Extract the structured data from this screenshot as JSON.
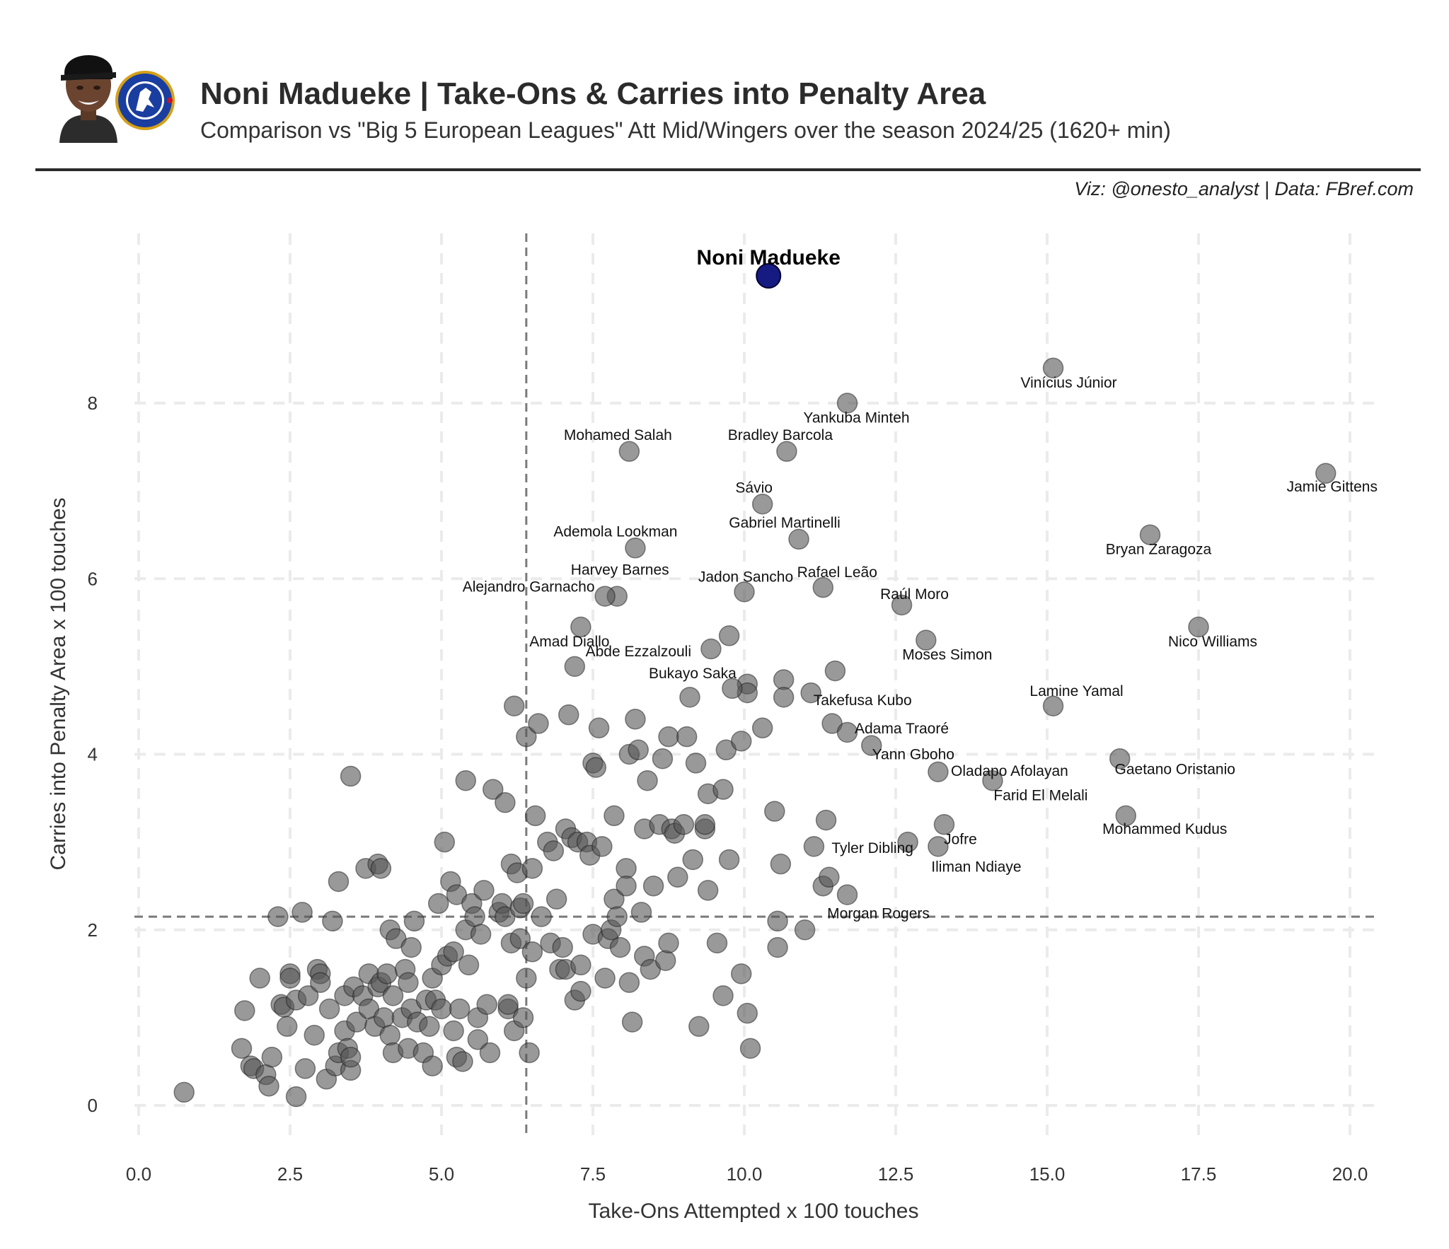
{
  "header": {
    "title": "Noni Madueke | Take-Ons & Carries into Penalty Area",
    "subtitle": "Comparison vs \"Big 5 European Leagues\" Att Mid/Wingers over the season 2024/25 (1620+ min)",
    "credit": "Viz: @onesto_analyst | Data: FBref.com"
  },
  "colors": {
    "highlight": "#0a0f7a",
    "others": "#555555",
    "median_line": "#7a7a7a",
    "grid": "#ebebeb",
    "crest_blue": "#1a3da0"
  },
  "icons": {
    "player_photo": "player-portrait-icon",
    "club_crest": "chelsea-crest-icon"
  },
  "chart_data": {
    "type": "scatter",
    "xlabel": "Take-Ons Attempted x 100 touches",
    "ylabel": "Carries into Penalty Area x 100 touches",
    "xlim": [
      -0.3,
      20.5
    ],
    "ylim": [
      -0.4,
      9.9
    ],
    "xticks": [
      0.0,
      2.5,
      5.0,
      7.5,
      10.0,
      12.5,
      15.0,
      17.5,
      20.0
    ],
    "xtick_labels": [
      "0.0",
      "2.5",
      "5.0",
      "7.5",
      "10.0",
      "12.5",
      "15.0",
      "17.5",
      "20.0"
    ],
    "yticks": [
      0,
      2,
      4,
      6,
      8
    ],
    "ytick_labels": [
      "0",
      "2",
      "4",
      "6",
      "8"
    ],
    "grid": true,
    "median_x": 6.4,
    "median_y": 2.15,
    "highlight": {
      "name": "Noni Madueke",
      "x": 10.4,
      "y": 9.45
    },
    "labeled_points": [
      {
        "name": "Vinícius Júnior",
        "x": 15.1,
        "y": 8.4
      },
      {
        "name": "Yankuba Minteh",
        "x": 11.7,
        "y": 8.0
      },
      {
        "name": "Mohamed Salah",
        "x": 8.1,
        "y": 7.45
      },
      {
        "name": "Bradley Barcola",
        "x": 10.7,
        "y": 7.45
      },
      {
        "name": "Jamie Gittens",
        "x": 19.6,
        "y": 7.2
      },
      {
        "name": "Sávio",
        "x": 10.3,
        "y": 6.85
      },
      {
        "name": "Bryan Zaragoza",
        "x": 16.7,
        "y": 6.5
      },
      {
        "name": "Gabriel Martinelli",
        "x": 10.9,
        "y": 6.45
      },
      {
        "name": "Ademola Lookman",
        "x": 8.2,
        "y": 6.35
      },
      {
        "name": "Rafael Leão",
        "x": 11.3,
        "y": 5.9
      },
      {
        "name": "Jadon Sancho",
        "x": 10.0,
        "y": 5.85
      },
      {
        "name": "Harvey Barnes",
        "x": 7.9,
        "y": 5.8
      },
      {
        "name": "Alejandro Garnacho",
        "x": 7.7,
        "y": 5.8
      },
      {
        "name": "Raúl Moro",
        "x": 12.6,
        "y": 5.7
      },
      {
        "name": "Amad Diallo",
        "x": 7.3,
        "y": 5.45
      },
      {
        "name": "Nico Williams",
        "x": 17.5,
        "y": 5.45
      },
      {
        "name": "Moses Simon",
        "x": 13.0,
        "y": 5.3
      },
      {
        "name": "Abde Ezzalzouli",
        "x": 7.2,
        "y": 5.0
      },
      {
        "name": "Bukayo Saka",
        "x": 9.8,
        "y": 4.75
      },
      {
        "name": "Takefusa Kubo",
        "x": 11.1,
        "y": 4.7
      },
      {
        "name": "Lamine Yamal",
        "x": 15.1,
        "y": 4.55
      },
      {
        "name": "Adama Traoré",
        "x": 11.7,
        "y": 4.25
      },
      {
        "name": "Yann Gboho",
        "x": 12.1,
        "y": 4.1
      },
      {
        "name": "Gaetano Oristanio",
        "x": 16.2,
        "y": 3.95
      },
      {
        "name": "Oladapo Afolayan",
        "x": 13.2,
        "y": 3.8
      },
      {
        "name": "Farid El Melali",
        "x": 14.1,
        "y": 3.7
      },
      {
        "name": "Mohammed Kudus",
        "x": 16.3,
        "y": 3.3
      },
      {
        "name": "Jofre",
        "x": 13.3,
        "y": 3.2
      },
      {
        "name": "Tyler Dibling",
        "x": 12.7,
        "y": 3.0
      },
      {
        "name": "Iliman Ndiaye",
        "x": 13.2,
        "y": 2.95
      },
      {
        "name": "Morgan Rogers",
        "x": 11.7,
        "y": 2.4
      }
    ],
    "other_points": [
      [
        0.75,
        0.15
      ],
      [
        1.7,
        0.65
      ],
      [
        1.75,
        1.08
      ],
      [
        1.85,
        0.45
      ],
      [
        1.9,
        0.42
      ],
      [
        2.0,
        1.45
      ],
      [
        2.1,
        0.35
      ],
      [
        2.15,
        0.22
      ],
      [
        2.2,
        0.55
      ],
      [
        2.3,
        2.15
      ],
      [
        2.35,
        1.15
      ],
      [
        2.4,
        1.12
      ],
      [
        2.45,
        0.9
      ],
      [
        2.5,
        1.5
      ],
      [
        2.5,
        1.45
      ],
      [
        2.6,
        0.1
      ],
      [
        2.6,
        1.2
      ],
      [
        2.7,
        2.2
      ],
      [
        2.75,
        0.42
      ],
      [
        2.8,
        1.25
      ],
      [
        2.9,
        0.8
      ],
      [
        2.95,
        1.55
      ],
      [
        3.0,
        1.5
      ],
      [
        3.0,
        1.4
      ],
      [
        3.1,
        0.3
      ],
      [
        3.15,
        1.1
      ],
      [
        3.2,
        2.1
      ],
      [
        3.25,
        0.45
      ],
      [
        3.3,
        0.6
      ],
      [
        3.3,
        2.55
      ],
      [
        3.4,
        0.85
      ],
      [
        3.4,
        1.25
      ],
      [
        3.45,
        0.65
      ],
      [
        3.5,
        0.4
      ],
      [
        3.5,
        0.55
      ],
      [
        3.5,
        3.75
      ],
      [
        3.55,
        1.35
      ],
      [
        3.6,
        0.95
      ],
      [
        3.7,
        1.25
      ],
      [
        3.75,
        2.7
      ],
      [
        3.8,
        1.5
      ],
      [
        3.8,
        1.1
      ],
      [
        3.9,
        0.9
      ],
      [
        3.95,
        2.75
      ],
      [
        3.95,
        1.35
      ],
      [
        4.0,
        2.7
      ],
      [
        4.0,
        1.4
      ],
      [
        4.05,
        1.0
      ],
      [
        4.1,
        1.5
      ],
      [
        4.15,
        0.8
      ],
      [
        4.15,
        2.0
      ],
      [
        4.2,
        1.25
      ],
      [
        4.2,
        0.6
      ],
      [
        4.25,
        1.9
      ],
      [
        4.35,
        1.0
      ],
      [
        4.4,
        1.55
      ],
      [
        4.45,
        0.65
      ],
      [
        4.45,
        1.4
      ],
      [
        4.5,
        1.1
      ],
      [
        4.5,
        1.8
      ],
      [
        4.55,
        2.1
      ],
      [
        4.6,
        0.95
      ],
      [
        4.7,
        0.6
      ],
      [
        4.75,
        1.2
      ],
      [
        4.8,
        0.9
      ],
      [
        4.85,
        1.45
      ],
      [
        4.85,
        0.45
      ],
      [
        4.9,
        1.2
      ],
      [
        4.95,
        2.3
      ],
      [
        5.0,
        1.6
      ],
      [
        5.0,
        1.1
      ],
      [
        5.05,
        3.0
      ],
      [
        5.1,
        1.7
      ],
      [
        5.15,
        2.55
      ],
      [
        5.2,
        1.75
      ],
      [
        5.2,
        0.85
      ],
      [
        5.25,
        0.55
      ],
      [
        5.25,
        2.4
      ],
      [
        5.3,
        1.1
      ],
      [
        5.35,
        0.5
      ],
      [
        5.4,
        2.0
      ],
      [
        5.4,
        3.7
      ],
      [
        5.45,
        1.6
      ],
      [
        5.5,
        2.3
      ],
      [
        5.55,
        2.15
      ],
      [
        5.6,
        1.0
      ],
      [
        5.6,
        0.75
      ],
      [
        5.65,
        1.95
      ],
      [
        5.7,
        2.45
      ],
      [
        5.75,
        1.15
      ],
      [
        5.8,
        0.6
      ],
      [
        5.85,
        3.6
      ],
      [
        5.95,
        2.2
      ],
      [
        6.0,
        2.3
      ],
      [
        6.05,
        2.15
      ],
      [
        6.05,
        3.45
      ],
      [
        6.1,
        1.1
      ],
      [
        6.1,
        1.15
      ],
      [
        6.15,
        2.75
      ],
      [
        6.15,
        1.85
      ],
      [
        6.2,
        4.55
      ],
      [
        6.2,
        0.85
      ],
      [
        6.25,
        2.65
      ],
      [
        6.3,
        2.25
      ],
      [
        6.3,
        1.9
      ],
      [
        6.35,
        2.3
      ],
      [
        6.35,
        1.0
      ],
      [
        6.4,
        1.45
      ],
      [
        6.4,
        4.2
      ],
      [
        6.45,
        0.6
      ],
      [
        6.5,
        1.75
      ],
      [
        6.5,
        2.7
      ],
      [
        6.55,
        3.3
      ],
      [
        6.6,
        4.35
      ],
      [
        6.65,
        2.15
      ],
      [
        6.75,
        3.0
      ],
      [
        6.8,
        1.85
      ],
      [
        6.85,
        2.9
      ],
      [
        6.9,
        2.35
      ],
      [
        6.95,
        1.55
      ],
      [
        7.0,
        1.8
      ],
      [
        7.05,
        3.15
      ],
      [
        7.05,
        1.55
      ],
      [
        7.1,
        4.45
      ],
      [
        7.15,
        3.05
      ],
      [
        7.2,
        1.2
      ],
      [
        7.25,
        3.0
      ],
      [
        7.3,
        1.6
      ],
      [
        7.3,
        1.3
      ],
      [
        7.4,
        3.0
      ],
      [
        7.45,
        2.85
      ],
      [
        7.5,
        3.9
      ],
      [
        7.5,
        1.95
      ],
      [
        7.55,
        3.85
      ],
      [
        7.6,
        4.3
      ],
      [
        7.65,
        2.95
      ],
      [
        7.7,
        1.45
      ],
      [
        7.75,
        1.9
      ],
      [
        7.8,
        2.0
      ],
      [
        7.85,
        3.3
      ],
      [
        7.85,
        2.35
      ],
      [
        7.9,
        2.15
      ],
      [
        7.95,
        1.8
      ],
      [
        8.05,
        2.7
      ],
      [
        8.05,
        2.5
      ],
      [
        8.1,
        4.0
      ],
      [
        8.1,
        1.4
      ],
      [
        8.15,
        0.95
      ],
      [
        8.2,
        4.4
      ],
      [
        8.25,
        4.05
      ],
      [
        8.3,
        2.2
      ],
      [
        8.35,
        3.15
      ],
      [
        8.35,
        1.7
      ],
      [
        8.4,
        3.7
      ],
      [
        8.45,
        1.55
      ],
      [
        8.5,
        2.5
      ],
      [
        8.6,
        3.2
      ],
      [
        8.65,
        3.95
      ],
      [
        8.7,
        1.65
      ],
      [
        8.75,
        1.85
      ],
      [
        8.75,
        4.2
      ],
      [
        8.8,
        3.15
      ],
      [
        8.85,
        3.1
      ],
      [
        8.9,
        2.6
      ],
      [
        9.0,
        3.2
      ],
      [
        9.05,
        4.2
      ],
      [
        9.1,
        4.65
      ],
      [
        9.15,
        2.8
      ],
      [
        9.2,
        3.9
      ],
      [
        9.25,
        0.9
      ],
      [
        9.35,
        3.15
      ],
      [
        9.35,
        3.2
      ],
      [
        9.4,
        2.45
      ],
      [
        9.4,
        3.55
      ],
      [
        9.45,
        5.2
      ],
      [
        9.55,
        1.85
      ],
      [
        9.65,
        3.6
      ],
      [
        9.65,
        1.25
      ],
      [
        9.7,
        4.05
      ],
      [
        9.75,
        5.35
      ],
      [
        9.75,
        2.8
      ],
      [
        9.95,
        1.5
      ],
      [
        9.95,
        4.15
      ],
      [
        10.05,
        4.8
      ],
      [
        10.05,
        4.7
      ],
      [
        10.05,
        1.05
      ],
      [
        10.1,
        0.65
      ],
      [
        10.3,
        4.3
      ],
      [
        10.5,
        3.35
      ],
      [
        10.55,
        2.1
      ],
      [
        10.55,
        1.8
      ],
      [
        10.6,
        2.75
      ],
      [
        10.65,
        4.85
      ],
      [
        10.65,
        4.65
      ],
      [
        11.0,
        2.0
      ],
      [
        11.15,
        2.95
      ],
      [
        11.3,
        2.5
      ],
      [
        11.35,
        3.25
      ],
      [
        11.4,
        2.6
      ],
      [
        11.45,
        4.35
      ],
      [
        11.5,
        4.95
      ]
    ]
  }
}
